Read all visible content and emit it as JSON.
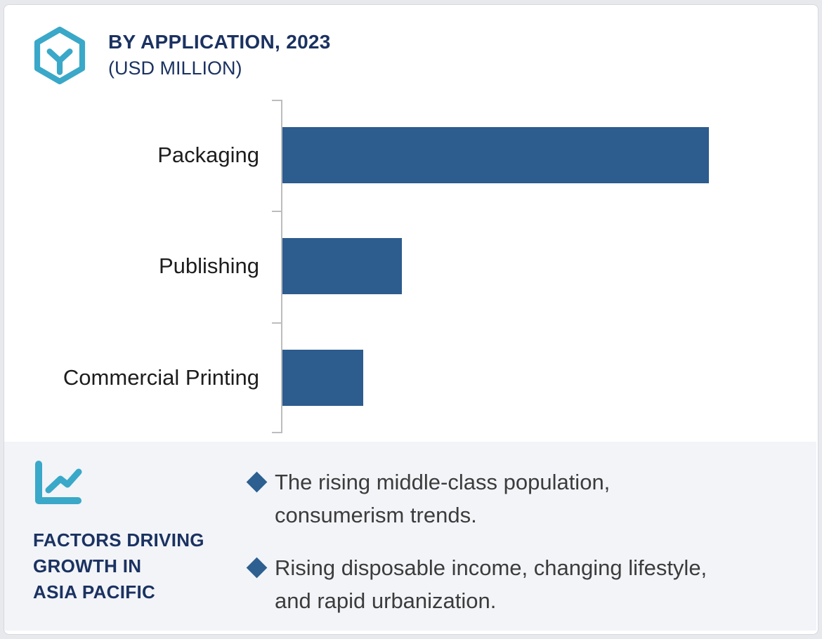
{
  "header": {
    "title": "BY APPLICATION, 2023",
    "subtitle": "(USD MILLION)",
    "logo_icon": "hexagon-cube-logo",
    "title_color": "#1b3261"
  },
  "chart_data": {
    "type": "bar",
    "orientation": "horizontal",
    "title": "BY APPLICATION, 2023",
    "subtitle": "(USD MILLION)",
    "units": "USD Million",
    "categories": [
      "Packaging",
      "Publishing",
      "Commercial Printing"
    ],
    "values": [
      100,
      28,
      19
    ],
    "values_note": "Axis has no tick labels or gridlines; values are relative estimates with Packaging = 100",
    "xlim": [
      0,
      107
    ],
    "grid": false,
    "legend": false,
    "value_labels_shown": false,
    "bar_color": "#2d5c8e",
    "axis_color": "#bdbdbd",
    "label_color": "#1d1d1d"
  },
  "factors": {
    "icon": "line-chart-icon",
    "bullet_icon": "diamond-bullet",
    "heading": "FACTORS DRIVING\nGROWTH IN\nASIA PACIFIC",
    "bullets": [
      "The rising middle-class population,\nconsumerism trends.",
      "Rising disposable income, changing lifestyle,\nand rapid urbanization."
    ],
    "panel_bg": "#f2f4f8",
    "heading_color": "#1b3261",
    "diamond_color": "#2d5f90",
    "text_color": "#3c3c3c",
    "accent_teal": "#3aa8c8"
  }
}
